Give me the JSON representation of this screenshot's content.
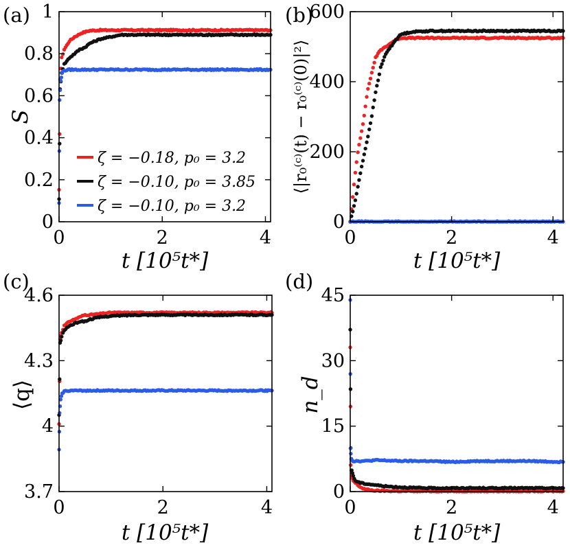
{
  "colors": {
    "red": "#ee2222",
    "black": "#111111",
    "blue": "#2b5ce8"
  },
  "legend": [
    {
      "label": "ζ = −0.18, p₀ = 3.2",
      "color": "#ee2222"
    },
    {
      "label": "ζ = −0.10, p₀ = 3.85",
      "color": "#111111"
    },
    {
      "label": "ζ = −0.10, p₀ = 3.2",
      "color": "#2b5ce8"
    }
  ],
  "chart_data": [
    {
      "type": "scatter",
      "panel_label": "(a)",
      "xlabel": "t [10⁵t*]",
      "ylabel": "S",
      "xlim": [
        0,
        4.1
      ],
      "ylim": [
        0,
        1
      ],
      "xticks": [
        0,
        2,
        4
      ],
      "yticks": [
        0,
        0.2,
        0.4,
        0.6,
        0.8,
        1
      ],
      "ytick_labels": [
        "0",
        "0.2",
        "0.4",
        "0.6",
        "0.8",
        "1"
      ],
      "legend_position": "lower-right",
      "series": [
        {
          "color": "#ee2222",
          "x": [
            0,
            0.02,
            0.05,
            0.1,
            0.2,
            0.3,
            0.45,
            0.6,
            0.8,
            1.0,
            1.5,
            2.0,
            2.5,
            3.0,
            3.5,
            4.1
          ],
          "y": [
            0.15,
            0.68,
            0.78,
            0.82,
            0.86,
            0.88,
            0.9,
            0.91,
            0.912,
            0.912,
            0.912,
            0.912,
            0.912,
            0.912,
            0.912,
            0.912
          ]
        },
        {
          "color": "#111111",
          "x": [
            0,
            0.02,
            0.05,
            0.1,
            0.2,
            0.3,
            0.4,
            0.5,
            0.6,
            0.7,
            0.8,
            0.9,
            1.0,
            1.1,
            1.2,
            1.5,
            2.0,
            2.5,
            3.0,
            3.5,
            4.1
          ],
          "y": [
            0.11,
            0.63,
            0.71,
            0.75,
            0.78,
            0.8,
            0.82,
            0.83,
            0.85,
            0.86,
            0.87,
            0.875,
            0.88,
            0.885,
            0.89,
            0.89,
            0.89,
            0.89,
            0.89,
            0.89,
            0.89
          ]
        },
        {
          "color": "#2b5ce8",
          "x": [
            0,
            0.01,
            0.03,
            0.06,
            0.1,
            0.2,
            0.5,
            1.0,
            2.0,
            3.0,
            4.1
          ],
          "y": [
            0.09,
            0.58,
            0.67,
            0.71,
            0.72,
            0.724,
            0.724,
            0.724,
            0.724,
            0.724,
            0.724
          ]
        }
      ]
    },
    {
      "type": "scatter",
      "panel_label": "(b)",
      "xlabel": "t [10⁵t*]",
      "ylabel": "⟨|r₀⁽ᶜ⁾(t) − r₀⁽ᶜ⁾(0)|²⟩",
      "xlim": [
        0,
        4.2
      ],
      "ylim": [
        0,
        600
      ],
      "xticks": [
        0,
        2,
        4
      ],
      "yticks": [
        0,
        200,
        400,
        600
      ],
      "ytick_labels": [
        "0",
        "200",
        "400",
        "600"
      ],
      "series": [
        {
          "color": "#ee2222",
          "x": [
            0,
            0.05,
            0.1,
            0.15,
            0.2,
            0.25,
            0.3,
            0.35,
            0.4,
            0.45,
            0.5,
            0.6,
            0.7,
            0.8,
            0.9,
            1.0,
            1.5,
            2.0,
            2.5,
            3.0,
            3.5,
            4.2
          ],
          "y": [
            0,
            70,
            140,
            200,
            240,
            280,
            330,
            380,
            410,
            440,
            470,
            490,
            500,
            510,
            520,
            525,
            525,
            525,
            525,
            525,
            525,
            525
          ]
        },
        {
          "color": "#111111",
          "x": [
            0,
            0.1,
            0.2,
            0.3,
            0.4,
            0.5,
            0.6,
            0.7,
            0.8,
            0.9,
            1.0,
            1.2,
            1.4,
            1.6,
            2.0,
            2.5,
            3.0,
            3.5,
            4.2
          ],
          "y": [
            0,
            60,
            140,
            210,
            280,
            370,
            440,
            480,
            500,
            520,
            535,
            542,
            544,
            545,
            545,
            545,
            545,
            545,
            545
          ]
        },
        {
          "color": "#2b5ce8",
          "x": [
            0,
            0.5,
            1.0,
            1.5,
            2.0,
            2.5,
            3.0,
            3.5,
            4.2
          ],
          "y": [
            0,
            0,
            0,
            0,
            0,
            0,
            0,
            0,
            0
          ]
        }
      ]
    },
    {
      "type": "scatter",
      "panel_label": "(c)",
      "xlabel": "t [10⁵t*]",
      "ylabel": "⟨q⟩",
      "xlim": [
        0,
        4.1
      ],
      "ylim": [
        3.7,
        4.6
      ],
      "xticks": [
        0,
        2,
        4
      ],
      "yticks": [
        3.7,
        4.0,
        4.3,
        4.6
      ],
      "ytick_labels": [
        "3.7",
        "4",
        "4.3",
        "4.6"
      ],
      "series": [
        {
          "color": "#ee2222",
          "x": [
            0,
            0.02,
            0.05,
            0.1,
            0.2,
            0.3,
            0.4,
            0.5,
            0.6,
            0.8,
            1.0,
            1.5,
            2.0,
            2.5,
            3.0,
            3.5,
            4.1
          ],
          "y": [
            4.01,
            4.4,
            4.43,
            4.46,
            4.48,
            4.49,
            4.5,
            4.51,
            4.51,
            4.515,
            4.52,
            4.52,
            4.52,
            4.52,
            4.52,
            4.52,
            4.52
          ]
        },
        {
          "color": "#111111",
          "x": [
            0,
            0.02,
            0.05,
            0.1,
            0.2,
            0.3,
            0.4,
            0.5,
            0.6,
            0.8,
            1.0,
            1.5,
            2.0,
            2.5,
            3.0,
            3.5,
            4.1
          ],
          "y": [
            4.05,
            4.38,
            4.41,
            4.44,
            4.46,
            4.47,
            4.48,
            4.48,
            4.49,
            4.5,
            4.505,
            4.51,
            4.51,
            4.51,
            4.51,
            4.51,
            4.51
          ]
        },
        {
          "color": "#2b5ce8",
          "x": [
            0,
            0.01,
            0.03,
            0.06,
            0.1,
            0.2,
            0.5,
            1.0,
            2.0,
            3.0,
            4.1
          ],
          "y": [
            3.89,
            4.06,
            4.12,
            4.15,
            4.16,
            4.163,
            4.163,
            4.163,
            4.163,
            4.163,
            4.163
          ]
        }
      ]
    },
    {
      "type": "scatter",
      "panel_label": "(d)",
      "xlabel": "t [10⁵t*]",
      "ylabel": "n_d",
      "xlim": [
        0,
        4.2
      ],
      "ylim": [
        0,
        45
      ],
      "xticks": [
        0,
        2,
        4
      ],
      "yticks": [
        0,
        15,
        30,
        45
      ],
      "ytick_labels": [
        "0",
        "15",
        "30",
        "45"
      ],
      "series": [
        {
          "color": "#ee2222",
          "x": [
            0,
            0.01,
            0.03,
            0.06,
            0.1,
            0.15,
            0.2,
            0.3,
            0.5,
            1.0,
            2.0,
            3.0,
            4.2
          ],
          "y": [
            33,
            6,
            3.5,
            2.5,
            2,
            1.5,
            1.0,
            0.5,
            0.2,
            0.1,
            0.1,
            0.1,
            0.1
          ]
        },
        {
          "color": "#111111",
          "x": [
            0,
            0.01,
            0.03,
            0.06,
            0.1,
            0.2,
            0.3,
            0.5,
            0.7,
            1.0,
            1.2,
            1.5,
            2.0,
            3.0,
            4.2
          ],
          "y": [
            37,
            10,
            5,
            3.5,
            2.5,
            2.0,
            1.8,
            1.5,
            1.2,
            1.0,
            0.9,
            0.8,
            0.8,
            0.8,
            0.8
          ]
        },
        {
          "color": "#2b5ce8",
          "x": [
            0,
            0.005,
            0.02,
            0.05,
            0.1,
            0.3,
            0.5,
            1.0,
            1.5,
            2.0,
            2.5,
            3.0,
            3.5,
            4.2
          ],
          "y": [
            44,
            10,
            7.5,
            7,
            7,
            7,
            7.2,
            7,
            7,
            6.8,
            7,
            7,
            7,
            6.8
          ]
        }
      ]
    }
  ]
}
